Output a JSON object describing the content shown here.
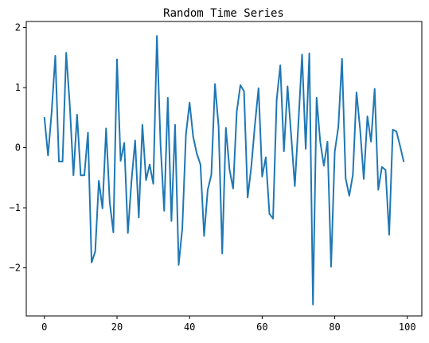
{
  "chart_data": {
    "type": "line",
    "title": "Random Time Series",
    "xlabel": "",
    "ylabel": "",
    "xlim": [
      -5,
      104
    ],
    "ylim": [
      -2.8,
      2.1
    ],
    "xticks": [
      0,
      20,
      40,
      60,
      80,
      100
    ],
    "xtick_labels": [
      "0",
      "20",
      "40",
      "60",
      "80",
      "100"
    ],
    "yticks": [
      2,
      1,
      0,
      -1,
      -2
    ],
    "ytick_labels": [
      "2",
      "1",
      "0",
      "−1",
      "−2"
    ],
    "grid": false,
    "series": [
      {
        "color": "#1f77b4",
        "x": [
          0,
          1,
          2,
          3,
          4,
          5,
          6,
          7,
          8,
          9,
          10,
          11,
          12,
          13,
          14,
          15,
          16,
          17,
          18,
          19,
          20,
          21,
          22,
          23,
          24,
          25,
          26,
          27,
          28,
          29,
          30,
          31,
          32,
          33,
          34,
          35,
          36,
          37,
          38,
          39,
          40,
          41,
          42,
          43,
          44,
          45,
          46,
          47,
          48,
          49,
          50,
          51,
          52,
          53,
          54,
          55,
          56,
          57,
          58,
          59,
          60,
          61,
          62,
          63,
          64,
          65,
          66,
          67,
          68,
          69,
          70,
          71,
          72,
          73,
          74,
          75,
          76,
          77,
          78,
          79,
          80,
          81,
          82,
          83,
          84,
          85,
          86,
          87,
          88,
          89,
          90,
          91,
          92,
          93,
          94,
          95,
          96,
          97,
          98,
          99
        ],
        "values": [
          0.5,
          -0.13,
          0.6,
          1.53,
          -0.23,
          -0.23,
          1.58,
          0.7,
          -0.46,
          0.55,
          -0.46,
          -0.46,
          0.25,
          -1.91,
          -1.73,
          -0.55,
          -1.01,
          0.32,
          -0.91,
          -1.41,
          1.47,
          -0.22,
          0.08,
          -1.42,
          -0.55,
          0.12,
          -1.16,
          0.38,
          -0.54,
          -0.28,
          -0.6,
          1.86,
          0.05,
          -1.05,
          0.83,
          -1.22,
          0.38,
          -1.95,
          -1.34,
          0.22,
          0.75,
          0.18,
          -0.1,
          -0.28,
          -1.47,
          -0.7,
          -0.45,
          1.06,
          0.35,
          -1.76,
          0.33,
          -0.36,
          -0.68,
          0.6,
          1.04,
          0.94,
          -0.83,
          -0.32,
          0.38,
          0.99,
          -0.48,
          -0.16,
          -1.1,
          -1.18,
          0.8,
          1.37,
          -0.06,
          1.02,
          0.2,
          -0.64,
          0.42,
          1.55,
          -0.02,
          1.57,
          -2.61,
          0.83,
          0.1,
          -0.3,
          0.1,
          -1.98,
          -0.07,
          0.35,
          1.48,
          -0.51,
          -0.8,
          -0.45,
          0.92,
          0.3,
          -0.52,
          0.52,
          0.1,
          0.98,
          -0.7,
          -0.32,
          -0.37,
          -1.45,
          0.3,
          0.27,
          0.03,
          -0.23
        ]
      }
    ]
  }
}
